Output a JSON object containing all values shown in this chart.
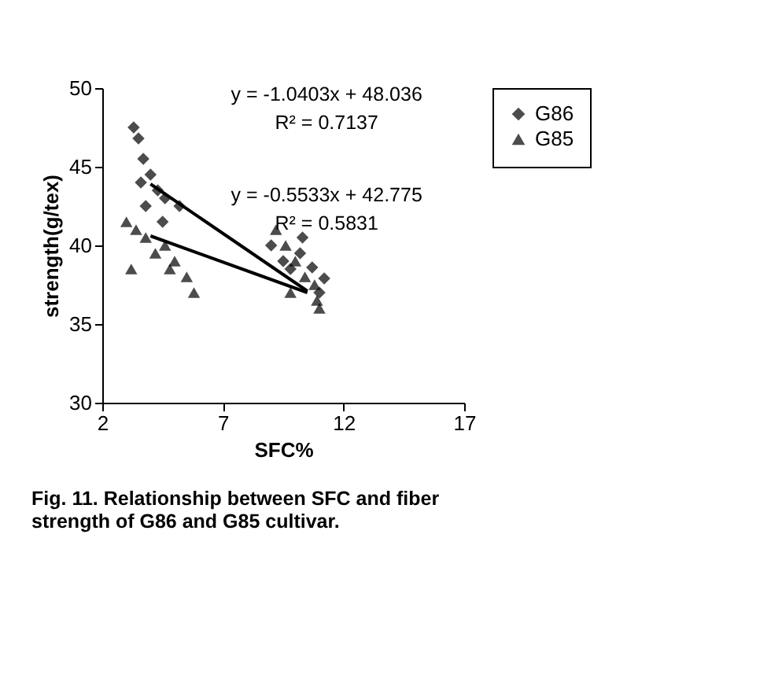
{
  "chart_data": {
    "type": "scatter",
    "xlabel": "SFC%",
    "ylabel": "strength(g/tex)",
    "xlim": [
      2,
      17
    ],
    "ylim": [
      30,
      50
    ],
    "xticks": [
      2,
      7,
      12,
      17
    ],
    "yticks": [
      30,
      35,
      40,
      45,
      50
    ],
    "grid": false,
    "legend": "right",
    "annotations": [
      "y = -1.0403x + 48.036",
      "R² = 0.7137",
      "y = -0.5533x + 42.775",
      "R² = 0.5831",
      "Fig. 11. Relationship between SFC and fiber strength of G86 and G85 cultivar."
    ],
    "series": [
      {
        "name": "G86",
        "color": "#000000",
        "marker": "diamond",
        "x": [
          3.3,
          3.5,
          3.7,
          3.6,
          4.0,
          4.3,
          3.8,
          4.6,
          5.2,
          4.5,
          9.0,
          9.5,
          9.8,
          10.2,
          10.7,
          11.2,
          10.3,
          11.0
        ],
        "values": [
          47.5,
          46.8,
          45.5,
          44.0,
          44.5,
          43.5,
          42.5,
          43.0,
          42.5,
          41.5,
          40.0,
          39.0,
          38.5,
          39.5,
          38.6,
          37.9,
          40.5,
          37.0
        ]
      },
      {
        "name": "G85",
        "color": "#000000",
        "marker": "triangle",
        "x": [
          3.0,
          3.4,
          3.8,
          4.2,
          4.6,
          5.0,
          3.2,
          4.8,
          5.5,
          5.8,
          9.2,
          9.6,
          10.0,
          10.4,
          10.8,
          10.9,
          11.0,
          9.8
        ],
        "values": [
          41.5,
          41.0,
          40.5,
          39.5,
          40.0,
          39.0,
          38.5,
          38.5,
          38.0,
          37.0,
          41.0,
          40.0,
          39.0,
          38.0,
          37.5,
          36.5,
          36.0,
          37.0
        ]
      },
      {
        "type": "line",
        "color": "#000000",
        "marker": "none",
        "x": [
          4,
          10.5
        ],
        "values": [
          43.9,
          37.1
        ]
      },
      {
        "type": "line",
        "color": "#000000",
        "marker": "none",
        "x": [
          4,
          10.5
        ],
        "values": [
          40.6,
          37.0
        ]
      }
    ]
  }
}
